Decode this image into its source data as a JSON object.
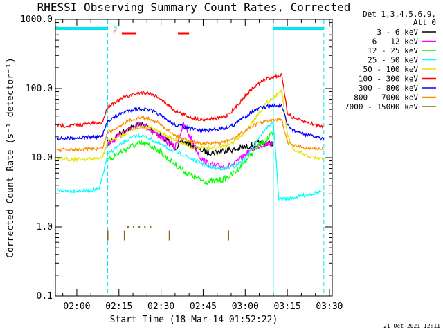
{
  "colors": {
    "background": "#ffffff",
    "axes": "#000000",
    "attenuator": "#00e5ee",
    "flare_flag": "#ff0000"
  },
  "chart_data": {
    "type": "line",
    "title": "RHESSI Observing Summary Count Rates, Corrected",
    "xlabel": "Start Time (18-Mar-14 01:52:22)",
    "ylabel": "Corrected Count Rate (s⁻¹ detector⁻¹)",
    "y_scale": "log",
    "ylim": [
      0.1,
      1000
    ],
    "xlim": [
      "01:52:22",
      "03:31:00"
    ],
    "y_ticks": [
      "0.1",
      "1.0",
      "10.0",
      "100.0",
      "1000.0"
    ],
    "x_ticks": [
      "02:00",
      "02:15",
      "02:30",
      "02:45",
      "03:00",
      "03:15",
      "03:30"
    ],
    "legend_title": [
      "Det 1,3,4,5,6,9,",
      "Att 0"
    ],
    "legend_position": "right",
    "annotations": {
      "night_marker": "N",
      "flare_marker": "F"
    },
    "night_intervals": [
      [
        "01:52:22",
        "02:11:00"
      ],
      [
        "03:10:00",
        "03:28:00"
      ]
    ],
    "flare_flag_intervals": [
      [
        "02:16:00",
        "02:21:00"
      ],
      [
        "02:36:00",
        "02:40:00"
      ]
    ],
    "attenuator_markers": [
      "02:11:00",
      "03:10:00"
    ],
    "series": [
      {
        "name": "3 - 6 keV",
        "color": "#000000",
        "x": [
          "02:11",
          "02:14",
          "02:17",
          "02:20",
          "02:23",
          "02:26",
          "02:29",
          "02:32",
          "02:35",
          "02:38",
          "02:41",
          "02:44",
          "02:47",
          "02:50",
          "02:53",
          "02:56",
          "02:59",
          "03:02",
          "03:05",
          "03:08",
          "03:10"
        ],
        "y": [
          16,
          20,
          25,
          28,
          30,
          27,
          22,
          18,
          14,
          17,
          15,
          13,
          12,
          12,
          13,
          13,
          14,
          15,
          16,
          16,
          16
        ]
      },
      {
        "name": "6 - 12 keV",
        "color": "#ff00ff",
        "x": [
          "02:11",
          "02:14",
          "02:17",
          "02:20",
          "02:23",
          "02:26",
          "02:29",
          "02:32",
          "02:35",
          "02:38",
          "02:41",
          "02:44",
          "02:47",
          "02:50",
          "02:53",
          "02:56",
          "02:59",
          "03:02",
          "03:05",
          "03:08",
          "03:10"
        ],
        "y": [
          15,
          19,
          24,
          29,
          30,
          26,
          21,
          17,
          14,
          30,
          18,
          10,
          8,
          7.5,
          7.5,
          8,
          10,
          13,
          15,
          16,
          17
        ]
      },
      {
        "name": "12 - 25 keV",
        "color": "#00ff00",
        "x": [
          "02:11",
          "02:14",
          "02:17",
          "02:20",
          "02:23",
          "02:26",
          "02:29",
          "02:32",
          "02:35",
          "02:38",
          "02:41",
          "02:44",
          "02:47",
          "02:50",
          "02:53",
          "02:56",
          "02:59",
          "03:02",
          "03:05",
          "03:08",
          "03:10"
        ],
        "y": [
          9,
          11,
          13,
          15,
          16,
          15,
          13,
          10,
          8,
          6.5,
          5.5,
          4.8,
          4.5,
          4.6,
          5,
          6,
          8,
          11,
          15,
          19,
          22
        ]
      },
      {
        "name": "25 - 50 keV",
        "color": "#00ffff",
        "x": [
          "01:53",
          "01:57",
          "02:01",
          "02:05",
          "02:08",
          "02:11",
          "02:14",
          "02:17",
          "02:20",
          "02:23",
          "02:26",
          "02:29",
          "02:32",
          "02:35",
          "02:38",
          "02:41",
          "02:44",
          "02:47",
          "02:50",
          "02:53",
          "02:56",
          "02:59",
          "03:02",
          "03:05",
          "03:08",
          "03:10",
          "03:12",
          "03:16",
          "03:20",
          "03:24",
          "03:27"
        ],
        "y": [
          3.4,
          3.3,
          3.3,
          3.4,
          3.5,
          11,
          14,
          17,
          20,
          21,
          19,
          16,
          14,
          12,
          11,
          9.5,
          8.5,
          7.5,
          7,
          7,
          7.5,
          9,
          13,
          20,
          28,
          33,
          2.5,
          2.6,
          2.8,
          3,
          3.3
        ]
      },
      {
        "name": "50 - 100 keV",
        "color": "#e5e500",
        "x": [
          "01:53",
          "01:57",
          "02:01",
          "02:05",
          "02:09",
          "02:11",
          "02:14",
          "02:17",
          "02:20",
          "02:23",
          "02:26",
          "02:29",
          "02:32",
          "02:35",
          "02:38",
          "02:41",
          "02:44",
          "02:47",
          "02:50",
          "02:53",
          "02:56",
          "02:59",
          "03:02",
          "03:05",
          "03:08",
          "03:11",
          "03:13",
          "03:15",
          "03:17",
          "03:21",
          "03:25",
          "03:28"
        ],
        "y": [
          9.5,
          9.5,
          9.5,
          9.6,
          9.8,
          17,
          19,
          22,
          26,
          28,
          27,
          24,
          21,
          18,
          16,
          14,
          14,
          14,
          14,
          15,
          17,
          21,
          30,
          45,
          65,
          80,
          95,
          22,
          13,
          11,
          10,
          9.5
        ]
      },
      {
        "name": "100 - 300 keV",
        "color": "#ff0000",
        "x": [
          "01:53",
          "01:57",
          "02:01",
          "02:05",
          "02:09",
          "02:11",
          "02:14",
          "02:17",
          "02:20",
          "02:23",
          "02:26",
          "02:29",
          "02:32",
          "02:35",
          "02:38",
          "02:41",
          "02:44",
          "02:47",
          "02:50",
          "02:53",
          "02:56",
          "02:59",
          "03:02",
          "03:05",
          "03:08",
          "03:11",
          "03:13",
          "03:15",
          "03:17",
          "03:21",
          "03:25",
          "03:28"
        ],
        "y": [
          29,
          29,
          30,
          31,
          32,
          55,
          65,
          75,
          82,
          88,
          85,
          75,
          60,
          48,
          42,
          38,
          36,
          36,
          37,
          40,
          50,
          70,
          95,
          120,
          140,
          150,
          155,
          45,
          38,
          33,
          30,
          28
        ]
      },
      {
        "name": "300 - 800 keV",
        "color": "#0000ff",
        "x": [
          "01:53",
          "01:57",
          "02:01",
          "02:05",
          "02:09",
          "02:11",
          "02:14",
          "02:17",
          "02:20",
          "02:23",
          "02:26",
          "02:29",
          "02:32",
          "02:35",
          "02:38",
          "02:41",
          "02:44",
          "02:47",
          "02:50",
          "02:53",
          "02:56",
          "02:59",
          "03:02",
          "03:05",
          "03:08",
          "03:11",
          "03:13",
          "03:15",
          "03:17",
          "03:21",
          "03:25",
          "03:28"
        ],
        "y": [
          19,
          19,
          19.5,
          20,
          20,
          34,
          40,
          46,
          50,
          51,
          49,
          43,
          35,
          30,
          28,
          26,
          25,
          25,
          26,
          27,
          30,
          37,
          45,
          52,
          55,
          57,
          56,
          30,
          25,
          22,
          20,
          19
        ]
      },
      {
        "name": "800 - 7000 keV",
        "color": "#ff8c00",
        "x": [
          "01:53",
          "01:57",
          "02:01",
          "02:05",
          "02:09",
          "02:11",
          "02:14",
          "02:17",
          "02:20",
          "02:23",
          "02:26",
          "02:29",
          "02:32",
          "02:35",
          "02:38",
          "02:41",
          "02:44",
          "02:47",
          "02:50",
          "02:53",
          "02:56",
          "02:59",
          "03:02",
          "03:05",
          "03:08",
          "03:11",
          "03:13",
          "03:15",
          "03:17",
          "03:21",
          "03:25",
          "03:28"
        ],
        "y": [
          13,
          13,
          13,
          13.5,
          13.5,
          23,
          27,
          32,
          36,
          38,
          37,
          32,
          26,
          21,
          19,
          17,
          16,
          16,
          16,
          17,
          19,
          23,
          28,
          32,
          34,
          35,
          35,
          17,
          15,
          14,
          13.5,
          13
        ]
      },
      {
        "name": "7000 - 15000 keV",
        "color": "#8b6914",
        "x": [
          "02:11",
          "02:17",
          "02:33",
          "02:54"
        ],
        "y": [
          0.75,
          0.75,
          0.75,
          0.75
        ]
      }
    ],
    "minor_traces": [
      {
        "color": "#8b6914",
        "x": [
          "02:18",
          "02:20",
          "02:22",
          "02:24",
          "02:26"
        ],
        "y": [
          1.0,
          1.0,
          1.0,
          1.0,
          1.0
        ]
      }
    ]
  },
  "footer": {
    "timestamp": "21-Oct-2021 12:11"
  }
}
